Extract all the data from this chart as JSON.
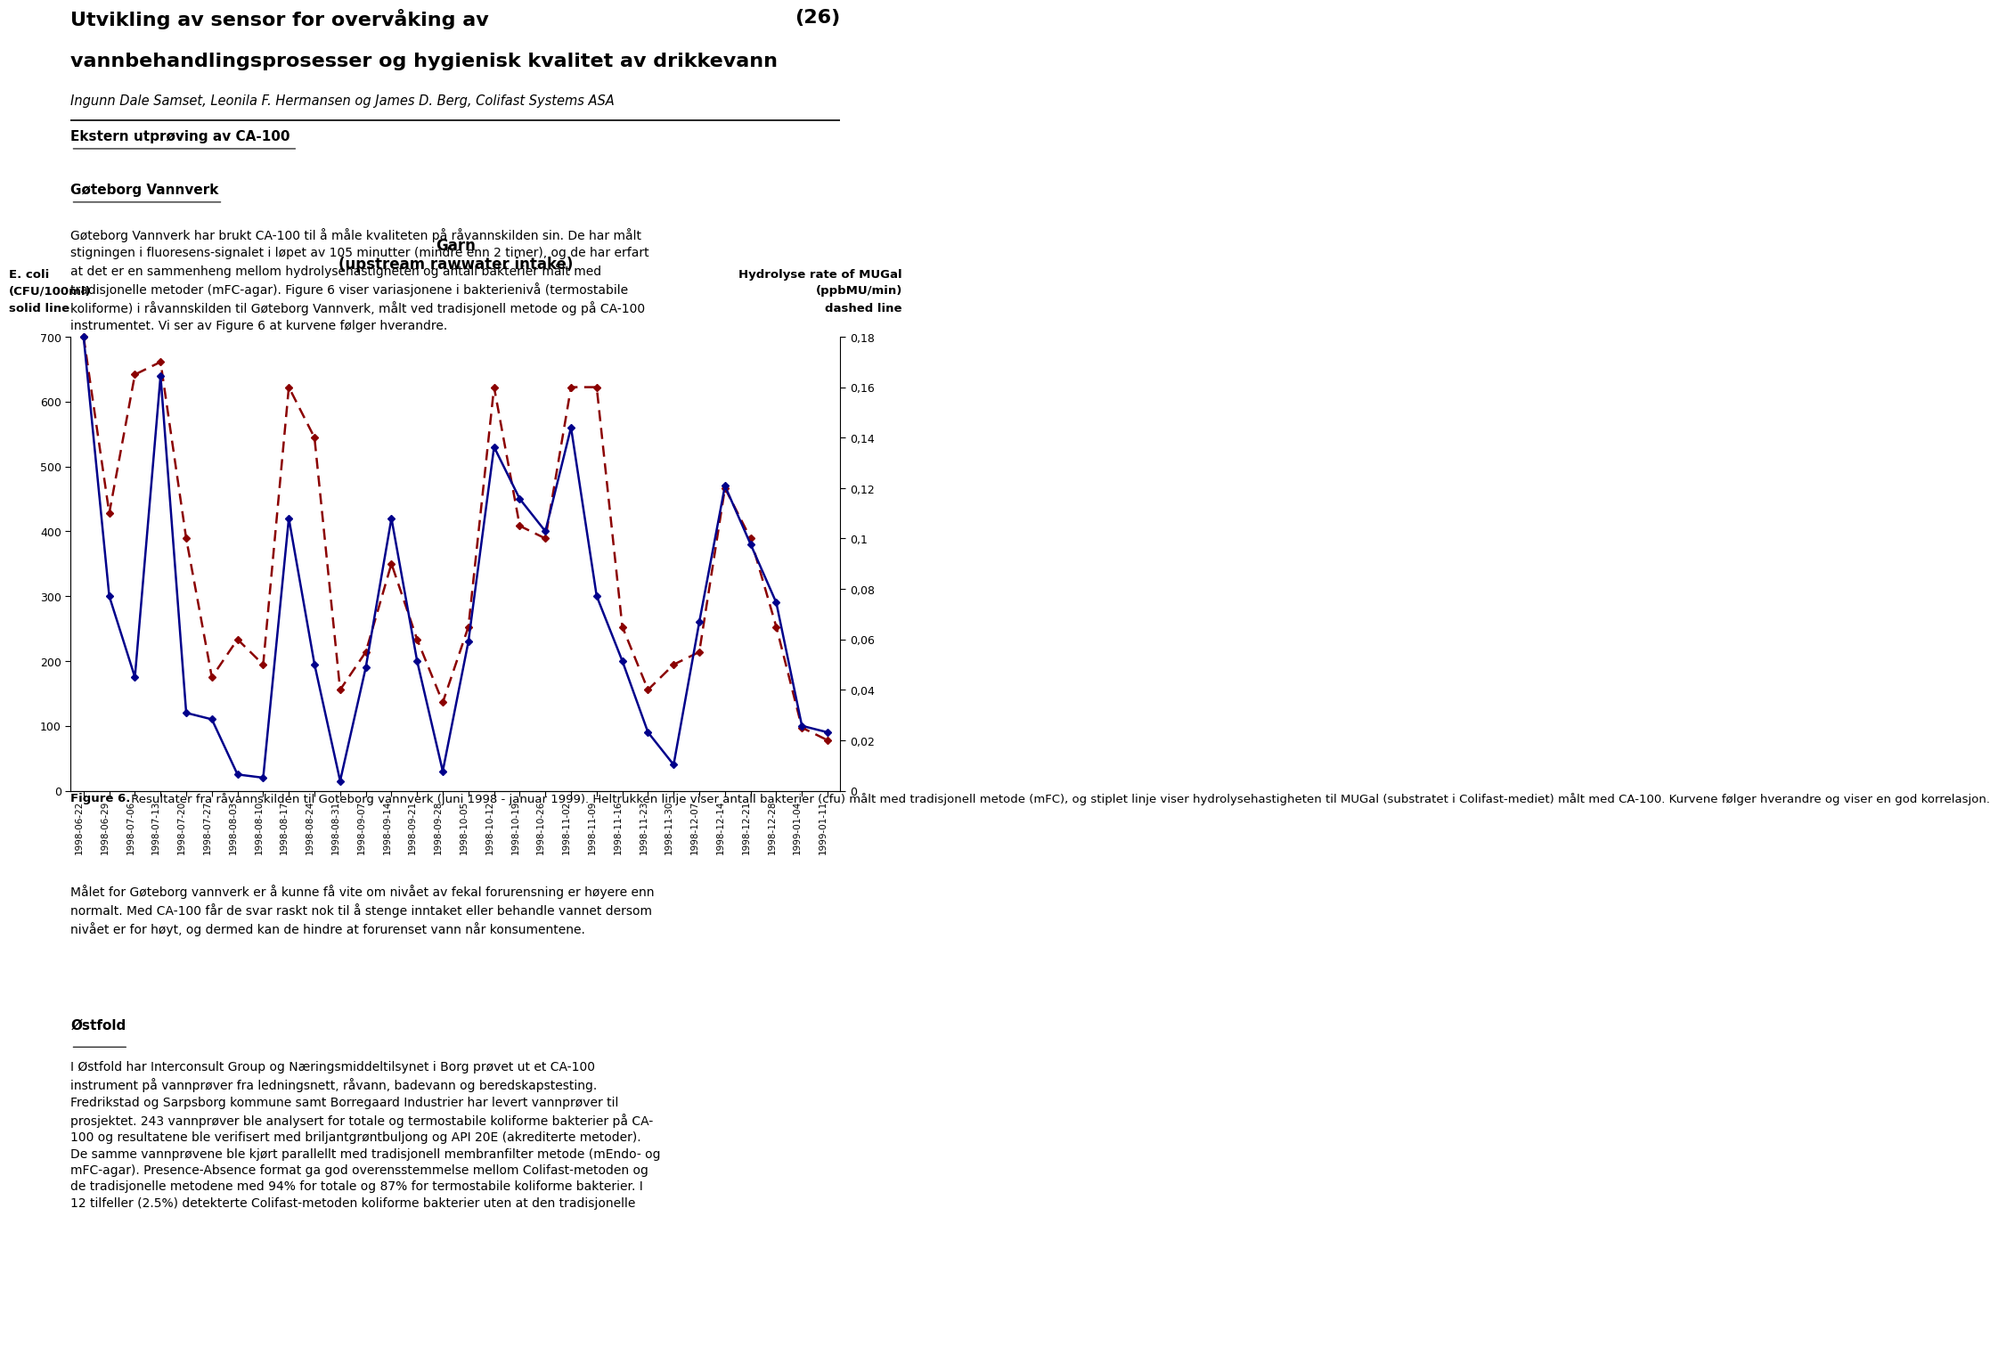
{
  "title_line1": "Utvikling av sensor for overvåking av",
  "title_line2": "vannbehandlingsprosesser og hygienisk kvalitet av drikkevann",
  "title_page": "(26)",
  "subtitle": "Ingunn Dale Samset, Leonila F. Hermansen og James D. Berg, Colifast Systems ASA",
  "section1": "Ekstern utprøving av CA-100",
  "section2": "Gøteborg Vannverk",
  "para1": "Gøteborg Vannverk har brukt CA-100 til å måle kvaliteten på råvannskilden sin. De har målt\nstigningen i fluoresens-signalet i løpet av 105 minutter (mindre enn 2 timer), og de har erfart\nat det er en sammenheng mellom hydrolysehastigheten og antall bakterier målt med\ntradisjonelle metoder (mFC-agar). Figure 6 viser variasjonene i bakterienivå (termostabile\nkoliforme) i råvannskilden til Gøteborg Vannverk, målt ved tradisjonell metode og på CA-100\ninstrumentet. Vi ser av Figure 6 at kurvene følger hverandre.",
  "chart_title1": "Garn",
  "chart_title2": "(upstream rawwater intake)",
  "ylabel_left1": "E. coli",
  "ylabel_left2": "(CFU/100ml)",
  "ylabel_left3": "solid line",
  "ylabel_right1": "Hydrolyse rate of MUGal",
  "ylabel_right2": "(ppbMU/min)",
  "ylabel_right3": "dashed line",
  "fig_caption_bold": "Figure 6.",
  "fig_caption_rest": " Resultater fra råvannskilden til Goteborg vannverk (juni 1998 - januar 1999). Heltrukken linje viser antall bakterier (cfu) målt med tradisjonell metode (mFC), og stiplet linje viser hydrolysehastigheten til MUGal (substratet i Colifast-mediet) målt med CA-100. Kurvene følger hverandre og viser en god korrelasjon.",
  "para2": "Målet for Gøteborg vannverk er å kunne få vite om nivået av fekal forurensning er høyere enn\nnormalt. Med CA-100 får de svar raskt nok til å stenge inntaket eller behandle vannet dersom\nnivået er for høyt, og dermed kan de hindre at forurenset vann når konsumentene.",
  "section4": "Østfold",
  "para3": "I Østfold har Interconsult Group og Næringsmiddeltilsynet i Borg prøvet ut et CA-100\ninstrument på vannprøver fra ledningsnett, råvann, badevann og beredskapstesting.\nFredrikstad og Sarpsborg kommune samt Borregaard Industrier har levert vannprøver til\nprosjektet. 243 vannprøver ble analysert for totale og termostabile koliforme bakterier på CA-\n100 og resultatene ble verifisert med briljantgrøntbuljong og API 20E (akrediterte metoder).\nDe samme vannprøvene ble kjørt parallellt med tradisjonell membranfilter metode (mEndo- og\nmFC-agar). Presence-Absence format ga god overensstemmelse mellom Colifast-metoden og\nde tradisjonelle metodene med 94% for totale og 87% for termostabile koliforme bakterier. I\n12 tilfeller (2.5%) detekterte Colifast-metoden koliforme bakterier uten at den tradisjonelle",
  "x_labels": [
    "1998-06-22",
    "1998-06-29",
    "1998-07-06",
    "1998-07-13",
    "1998-07-20",
    "1998-07-27",
    "1998-08-03",
    "1998-08-10",
    "1998-08-17",
    "1998-08-24",
    "1998-08-31",
    "1998-09-07",
    "1998-09-14",
    "1998-09-21",
    "1998-09-28",
    "1998-10-05",
    "1998-10-12",
    "1998-10-19",
    "1998-10-26",
    "1998-11-02",
    "1998-11-09",
    "1998-11-16",
    "1998-11-23",
    "1998-11-30",
    "1998-12-07",
    "1998-12-14",
    "1998-12-21",
    "1998-12-28",
    "1999-01-04",
    "1999-01-11"
  ],
  "solid_values": [
    700,
    300,
    175,
    640,
    120,
    110,
    25,
    20,
    420,
    195,
    15,
    190,
    420,
    200,
    30,
    230,
    530,
    450,
    400,
    560,
    300,
    200,
    90,
    40,
    260,
    470,
    380,
    290,
    100,
    90
  ],
  "dashed_values": [
    0.18,
    0.11,
    0.165,
    0.17,
    0.1,
    0.045,
    0.06,
    0.05,
    0.16,
    0.14,
    0.04,
    0.055,
    0.09,
    0.06,
    0.035,
    0.065,
    0.16,
    0.105,
    0.1,
    0.16,
    0.16,
    0.065,
    0.04,
    0.05,
    0.055,
    0.12,
    0.1,
    0.065,
    0.025,
    0.02
  ],
  "yticks_left": [
    0,
    100,
    200,
    300,
    400,
    500,
    600,
    700
  ],
  "ytick_right_labels": [
    "0",
    "0,02",
    "0,04",
    "0,06",
    "0,08",
    "0,1",
    "0,12",
    "0,14",
    "0,16",
    "0,18"
  ],
  "yticks_right": [
    0.0,
    0.02,
    0.04,
    0.06,
    0.08,
    0.1,
    0.12,
    0.14,
    0.16,
    0.18
  ],
  "solid_color": "#00008B",
  "dashed_color": "#8B0000",
  "bg_color": "#ffffff"
}
